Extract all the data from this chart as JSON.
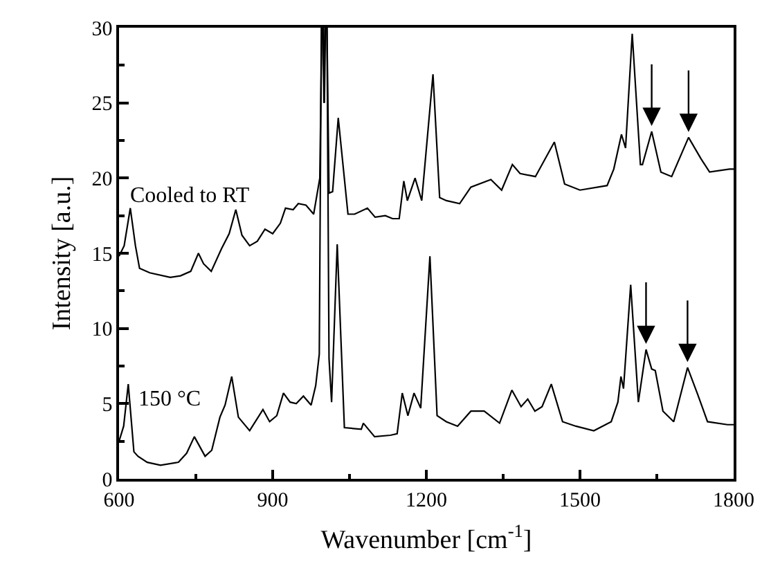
{
  "chart_data": {
    "type": "line",
    "xlabel": "Wavenumber [cm$^{-1}$]",
    "ylabel": "Intensity [a.u.]",
    "xlim": [
      600,
      1800
    ],
    "ylim": [
      0,
      30
    ],
    "xticks": [
      600,
      {
        "value": 750,
        "label": null
      },
      900,
      {
        "value": 1050,
        "label": null
      },
      1200,
      {
        "value": 1350,
        "label": null
      },
      1500,
      {
        "value": 1650,
        "label": null
      },
      1800
    ],
    "yticks": [
      0,
      {
        "value": 2.5,
        "label": null
      },
      5,
      {
        "value": 7.5,
        "label": null
      },
      10,
      {
        "value": 12.5,
        "label": null
      },
      15,
      {
        "value": 17.5,
        "label": null
      },
      20,
      {
        "value": 22.5,
        "label": null
      },
      25,
      {
        "value": 27.5,
        "label": null
      },
      30
    ],
    "legend": false,
    "marker": "none",
    "line_style": "solid",
    "series": [
      {
        "name": "Cooled to RT",
        "color": "#000000",
        "x": [
          600,
          610,
          622,
          632,
          640,
          660,
          700,
          720,
          740,
          755,
          765,
          780,
          800,
          815,
          828,
          840,
          855,
          870,
          885,
          900,
          915,
          925,
          940,
          950,
          965,
          980,
          992,
          996,
          999,
          1001,
          1003,
          1006,
          1010,
          1017,
          1028,
          1047,
          1060,
          1085,
          1100,
          1120,
          1134,
          1147,
          1156,
          1163,
          1178,
          1191,
          1213,
          1226,
          1239,
          1265,
          1287,
          1326,
          1347,
          1368,
          1383,
          1413,
          1450,
          1470,
          1500,
          1553,
          1566,
          1581,
          1589,
          1602,
          1618,
          1622,
          1640,
          1658,
          1679,
          1712,
          1736,
          1753,
          1792,
          1800
        ],
        "values": [
          14.8,
          15.5,
          18.0,
          15.5,
          14.0,
          13.7,
          13.4,
          13.5,
          13.8,
          15.0,
          14.3,
          13.8,
          15.3,
          16.3,
          17.9,
          16.2,
          15.5,
          15.8,
          16.6,
          16.3,
          17.0,
          18.0,
          17.9,
          18.3,
          18.2,
          17.6,
          20.0,
          30,
          30,
          25,
          30,
          30,
          19.0,
          19.1,
          24.0,
          17.6,
          17.6,
          18.0,
          17.4,
          17.5,
          17.3,
          17.3,
          19.8,
          18.5,
          20.0,
          18.5,
          26.9,
          18.7,
          18.5,
          18.3,
          19.4,
          19.9,
          19.2,
          20.9,
          20.3,
          20.1,
          22.4,
          19.6,
          19.2,
          19.5,
          20.6,
          22.9,
          22.0,
          29.6,
          20.9,
          20.9,
          23.1,
          20.4,
          20.1,
          22.7,
          21.3,
          20.4,
          20.6,
          20.6
        ]
      },
      {
        "name": "150 °C",
        "color": "#000000",
        "x": [
          600,
          609,
          618,
          629,
          637,
          655,
          681,
          716,
          732,
          747,
          768,
          781,
          797,
          807,
          820,
          833,
          855,
          881,
          894,
          908,
          921,
          934,
          946,
          960,
          975,
          984,
          991,
          995,
          998,
          1000,
          1002,
          1006,
          1010,
          1015,
          1026,
          1040,
          1073,
          1077,
          1099,
          1130,
          1143,
          1153,
          1164,
          1176,
          1189,
          1207,
          1221,
          1239,
          1261,
          1287,
          1313,
          1343,
          1367,
          1385,
          1398,
          1412,
          1426,
          1444,
          1466,
          1492,
          1527,
          1561,
          1574,
          1580,
          1585,
          1599,
          1614,
          1629,
          1640,
          1647,
          1662,
          1683,
          1710,
          1730,
          1749,
          1788,
          1800
        ],
        "values": [
          2.5,
          3.5,
          6.3,
          1.8,
          1.5,
          1.1,
          0.9,
          1.1,
          1.7,
          2.8,
          1.5,
          1.9,
          4.1,
          4.9,
          6.8,
          4.1,
          3.2,
          4.6,
          3.8,
          4.2,
          5.7,
          5.1,
          5.0,
          5.5,
          4.9,
          6.2,
          8.3,
          30,
          30,
          25,
          30,
          30,
          8.0,
          5.1,
          15.6,
          3.4,
          3.3,
          3.7,
          2.8,
          2.9,
          3.0,
          5.7,
          4.2,
          5.7,
          4.7,
          14.8,
          4.2,
          3.8,
          3.5,
          4.5,
          4.5,
          3.7,
          5.9,
          4.8,
          5.3,
          4.5,
          4.8,
          6.3,
          3.8,
          3.5,
          3.2,
          3.8,
          5.1,
          6.8,
          6.0,
          12.9,
          5.1,
          8.6,
          7.3,
          7.2,
          4.5,
          3.8,
          7.4,
          5.6,
          3.8,
          3.6,
          3.6
        ]
      }
    ]
  }
}
